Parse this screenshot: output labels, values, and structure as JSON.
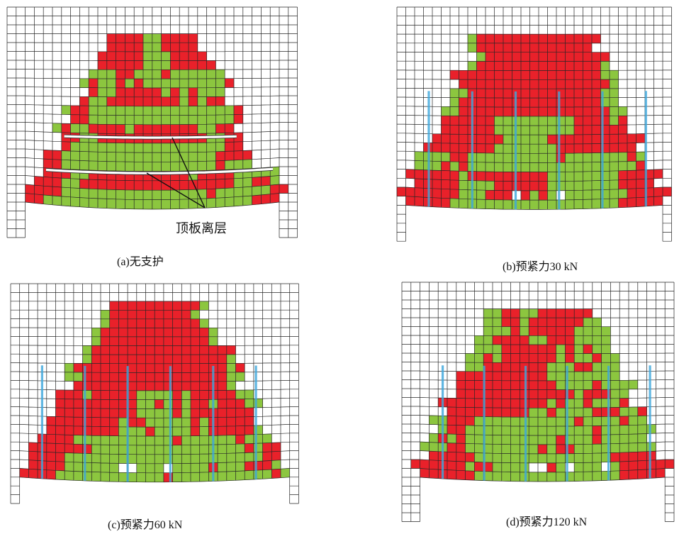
{
  "figure": {
    "annotation": {
      "label": "顶板离层"
    },
    "panels": [
      {
        "caption": "(a)无支护",
        "bolt_count": 0
      },
      {
        "caption": "(b)预紧力30 kN",
        "bolt_count": 6
      },
      {
        "caption": "(c)预紧力60 kN",
        "bolt_count": 6
      },
      {
        "caption": "(d)预紧力120 kN",
        "bolt_count": 6
      }
    ]
  },
  "colors": {
    "failure_red": "#e9212a",
    "failure_green": "#8cc63f",
    "bolt_blue": "#3ea7dc",
    "mesh_line": "#262626",
    "unfailed_white": "#ffffff"
  }
}
